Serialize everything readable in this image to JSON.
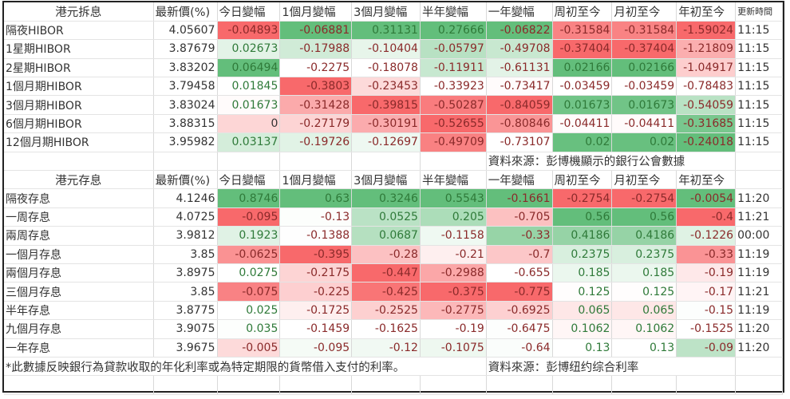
{
  "hibor": {
    "headers": [
      "港元拆息",
      "最新價(%)",
      "今日變幅",
      "1個月變幅",
      "3個月變幅",
      "半年變幅",
      "一年變幅",
      "周初至今",
      "月初至今",
      "年初至今",
      "更新時間"
    ],
    "rows": [
      {
        "name": "隔夜HIBOR",
        "price": "4.05607",
        "changes": [
          "-0.04893",
          "-0.06881",
          "0.31131",
          "0.27666",
          "-0.06822",
          "-0.31584",
          "-0.31584",
          "-1.59024"
        ],
        "time": "11:15"
      },
      {
        "name": "1星期HIBOR",
        "price": "3.87679",
        "changes": [
          "0.02673",
          "-0.17988",
          "-0.10404",
          "-0.05797",
          "-0.49708",
          "-0.37404",
          "-0.37404",
          "-1.21809"
        ],
        "time": "11:15"
      },
      {
        "name": "2星期HIBOR",
        "price": "3.83202",
        "changes": [
          "0.06494",
          "-0.2275",
          "-0.18078",
          "-0.11911",
          "-0.61131",
          "0.02166",
          "0.02166",
          "-1.04917"
        ],
        "time": "11:15"
      },
      {
        "name": "1個月期HIBOR",
        "price": "3.79458",
        "changes": [
          "0.01845",
          "-0.3803",
          "-0.23453",
          "-0.33923",
          "-0.73417",
          "-0.03459",
          "-0.03459",
          "-0.78483"
        ],
        "time": "11:15"
      },
      {
        "name": "3個月期HIBOR",
        "price": "3.83024",
        "changes": [
          "0.01673",
          "-0.31428",
          "-0.39815",
          "-0.50287",
          "-0.84059",
          "0.01673",
          "0.01673",
          "-0.54059"
        ],
        "time": "11:15"
      },
      {
        "name": "6個月期HIBOR",
        "price": "3.88315",
        "changes": [
          "0",
          "-0.27179",
          "-0.30191",
          "-0.52655",
          "-0.80846",
          "-0.04411",
          "-0.04411",
          "-0.31685"
        ],
        "time": "11:15"
      },
      {
        "name": "12個月期HIBOR",
        "price": "3.95982",
        "changes": [
          "0.03137",
          "-0.19726",
          "-0.12697",
          "-0.49709",
          "-0.73107",
          "0.02",
          "0.02",
          "-0.24018"
        ],
        "time": "11:15"
      }
    ],
    "source": "資料來源：彭博機顯示的銀行公會數據"
  },
  "deposit": {
    "headers": [
      "港元存息",
      "最新價(%)",
      "今日變幅",
      "1個月變幅",
      "3個月變幅",
      "半年變幅",
      "一年變幅",
      "周初至今",
      "月初至今",
      "年初至今"
    ],
    "rows": [
      {
        "name": "隔夜存息",
        "price": "4.1246",
        "changes": [
          "0.8746",
          "0.63",
          "0.3246",
          "0.5543",
          "-0.1661",
          "-0.2754",
          "-0.2754",
          "-0.0054"
        ],
        "time": "11:20"
      },
      {
        "name": "一周存息",
        "price": "4.0725",
        "changes": [
          "-0.095",
          "-0.13",
          "0.0525",
          "0.205",
          "-0.705",
          "0.56",
          "0.56",
          "-0.4"
        ],
        "time": "11:21"
      },
      {
        "name": "兩周存息",
        "price": "3.9812",
        "changes": [
          "0.1923",
          "-0.1388",
          "0.0687",
          "-0.1158",
          "-0.33",
          "0.4186",
          "0.4186",
          "-0.1226"
        ],
        "time": "00:00"
      },
      {
        "name": "一個月存息",
        "price": "3.85",
        "changes": [
          "-0.0625",
          "-0.395",
          "-0.28",
          "-0.21",
          "-0.7",
          "0.2375",
          "0.2375",
          "-0.33"
        ],
        "time": "11:19"
      },
      {
        "name": "兩個月存息",
        "price": "3.8975",
        "changes": [
          "0.0275",
          "-0.2175",
          "-0.447",
          "-0.2988",
          "-0.655",
          "0.185",
          "0.185",
          "-0.19"
        ],
        "time": "11:19"
      },
      {
        "name": "三個月存息",
        "price": "3.85",
        "changes": [
          "-0.075",
          "-0.225",
          "-0.425",
          "-0.375",
          "-0.775",
          "0.125",
          "0.125",
          "-0.17"
        ],
        "time": "11:21"
      },
      {
        "name": "半年存息",
        "price": "3.8775",
        "changes": [
          "0.025",
          "-0.1725",
          "-0.2525",
          "-0.2775",
          "-0.6925",
          "0.065",
          "0.065",
          "-0.15"
        ],
        "time": "11:19"
      },
      {
        "name": "九個月存息",
        "price": "3.9075",
        "changes": [
          "0.035",
          "-0.1459",
          "-0.1625",
          "-0.19",
          "-0.6475",
          "0.1062",
          "0.1062",
          "-0.1525"
        ],
        "time": "11:20"
      },
      {
        "name": "一年存息",
        "price": "3.9675",
        "changes": [
          "-0.005",
          "-0.095",
          "-0.12",
          "-0.1075",
          "-0.64",
          "0.13",
          "0.13",
          "-0.09"
        ],
        "time": "11:20"
      }
    ],
    "footnote": "*此數據反映銀行為貸款收取的年化利率或為特定期限的貨幣借入支付的利率。",
    "source": "資料來源：彭博纽约综合利率"
  },
  "colors": {
    "scale_low": "#F8696B",
    "scale_mid": "#FFFFFF",
    "scale_high": "#63BE7B",
    "positive_text": "#2f7a39",
    "negative_text": "#8a2a2a"
  }
}
